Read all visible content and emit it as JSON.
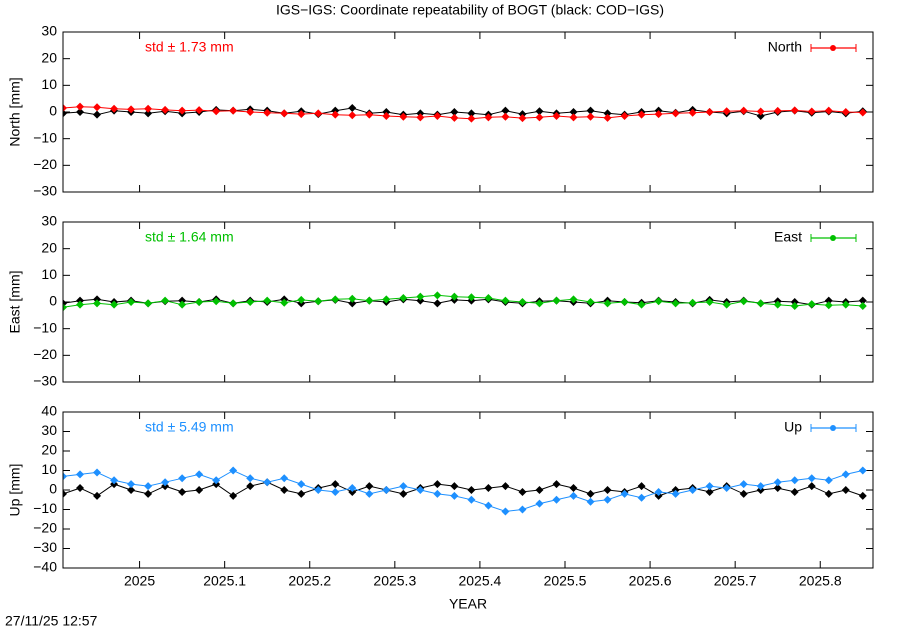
{
  "title": "IGS−IGS: Coordinate repeatability of BOGT (black: COD−IGS)",
  "timestamp": "27/11/25 12:57",
  "chart_data": [
    {
      "type": "line",
      "ylabel": "North [mm]",
      "annotation": "std ± 1.73 mm",
      "show_xtick_labels": false,
      "x": [
        2024.91,
        2024.93,
        2024.95,
        2024.97,
        2024.99,
        2025.01,
        2025.03,
        2025.05,
        2025.07,
        2025.09,
        2025.11,
        2025.13,
        2025.15,
        2025.17,
        2025.19,
        2025.21,
        2025.23,
        2025.25,
        2025.27,
        2025.29,
        2025.31,
        2025.33,
        2025.35,
        2025.37,
        2025.39,
        2025.41,
        2025.43,
        2025.45,
        2025.47,
        2025.49,
        2025.51,
        2025.53,
        2025.55,
        2025.57,
        2025.59,
        2025.61,
        2025.63,
        2025.65,
        2025.67,
        2025.69,
        2025.71,
        2025.73,
        2025.75,
        2025.77,
        2025.79,
        2025.81,
        2025.83,
        2025.85
      ],
      "xlim": [
        2024.91,
        2025.862
      ],
      "xticks": [
        2025,
        2025.1,
        2025.2,
        2025.3,
        2025.4,
        2025.5,
        2025.6,
        2025.7,
        2025.8
      ],
      "ylim": [
        -30,
        30
      ],
      "yticks": [
        {
          "value": -30,
          "label": "−30"
        },
        {
          "value": -20,
          "label": "−20"
        },
        {
          "value": -10,
          "label": "−10"
        },
        0,
        10,
        20,
        30
      ],
      "series": [
        {
          "color": "#000000",
          "values": [
            -0.5,
            0,
            -1,
            0.5,
            0,
            -0.5,
            0.3,
            -0.5,
            0,
            0.8,
            0.5,
            1,
            0.5,
            -0.5,
            0.3,
            -0.8,
            0.5,
            1.5,
            -0.5,
            0,
            -1,
            -0.5,
            -1,
            0,
            -0.5,
            -1,
            0.5,
            -0.8,
            0.3,
            -0.5,
            0,
            0.5,
            -0.5,
            -1,
            0,
            0.5,
            -0.3,
            0.8,
            0,
            -0.5,
            0.3,
            -1.5,
            0,
            0.5,
            -0.3,
            0.2,
            -0.5,
            0.3
          ]
        },
        {
          "name": "North",
          "color": "#ff0000",
          "values": [
            1.5,
            2,
            1.8,
            1.2,
            1,
            1.2,
            0.8,
            0.5,
            0.7,
            0.3,
            0.5,
            0,
            -0.3,
            -0.5,
            -0.8,
            -0.5,
            -1,
            -1.2,
            -1,
            -1.5,
            -1.8,
            -2,
            -1.5,
            -2.2,
            -2.5,
            -2,
            -1.8,
            -2.3,
            -2,
            -1.5,
            -2,
            -1.8,
            -2.2,
            -1.5,
            -1,
            -0.8,
            -0.5,
            -0.3,
            0,
            0.3,
            0.5,
            0.2,
            0.4,
            0.6,
            0.2,
            0.5,
            0,
            -0.2
          ]
        }
      ]
    },
    {
      "type": "line",
      "ylabel": "East [mm]",
      "annotation": "std ± 1.64 mm",
      "show_xtick_labels": false,
      "x": [
        2024.91,
        2024.93,
        2024.95,
        2024.97,
        2024.99,
        2025.01,
        2025.03,
        2025.05,
        2025.07,
        2025.09,
        2025.11,
        2025.13,
        2025.15,
        2025.17,
        2025.19,
        2025.21,
        2025.23,
        2025.25,
        2025.27,
        2025.29,
        2025.31,
        2025.33,
        2025.35,
        2025.37,
        2025.39,
        2025.41,
        2025.43,
        2025.45,
        2025.47,
        2025.49,
        2025.51,
        2025.53,
        2025.55,
        2025.57,
        2025.59,
        2025.61,
        2025.63,
        2025.65,
        2025.67,
        2025.69,
        2025.71,
        2025.73,
        2025.75,
        2025.77,
        2025.79,
        2025.81,
        2025.83,
        2025.85
      ],
      "xlim": [
        2024.91,
        2025.862
      ],
      "xticks": [
        2025,
        2025.1,
        2025.2,
        2025.3,
        2025.4,
        2025.5,
        2025.6,
        2025.7,
        2025.8
      ],
      "ylim": [
        -30,
        30
      ],
      "yticks": [
        {
          "value": -30,
          "label": "−30"
        },
        {
          "value": -20,
          "label": "−20"
        },
        {
          "value": -10,
          "label": "−10"
        },
        0,
        10,
        20,
        30
      ],
      "series": [
        {
          "color": "#000000",
          "values": [
            -0.5,
            0.5,
            1,
            0,
            0.5,
            -0.5,
            0.3,
            0.5,
            0,
            1,
            -0.5,
            0.5,
            0,
            1,
            -0.5,
            0.3,
            0.8,
            -0.5,
            0.5,
            0,
            1,
            0.5,
            -0.5,
            0.8,
            0.5,
            1,
            0,
            -0.5,
            0.3,
            0.5,
            0,
            -0.5,
            0.5,
            0,
            -0.3,
            0.5,
            0,
            -0.5,
            0.8,
            0,
            0.5,
            -0.5,
            0.3,
            0,
            -1,
            0.5,
            0,
            0.5
          ]
        },
        {
          "name": "East",
          "color": "#00c000",
          "values": [
            -2,
            -1,
            -0.5,
            -1,
            0,
            -0.5,
            0.5,
            -1,
            0,
            0.3,
            -0.5,
            0,
            0.5,
            -0.3,
            0.8,
            0.3,
            1,
            1.2,
            0.5,
            1,
            1.5,
            2,
            2.5,
            2,
            1.8,
            1.5,
            0.5,
            0,
            -0.5,
            0.5,
            1,
            0,
            -0.5,
            0,
            -1,
            0.3,
            -0.5,
            -0.3,
            0,
            -1,
            0.3,
            -0.5,
            -1,
            -1.5,
            -0.8,
            -1.2,
            -1,
            -1.5
          ]
        }
      ]
    },
    {
      "type": "line",
      "ylabel": "Up [mm]",
      "xlabel": "YEAR",
      "annotation": "std ± 5.49 mm",
      "show_xtick_labels": true,
      "x": [
        2024.91,
        2024.93,
        2024.95,
        2024.97,
        2024.99,
        2025.01,
        2025.03,
        2025.05,
        2025.07,
        2025.09,
        2025.11,
        2025.13,
        2025.15,
        2025.17,
        2025.19,
        2025.21,
        2025.23,
        2025.25,
        2025.27,
        2025.29,
        2025.31,
        2025.33,
        2025.35,
        2025.37,
        2025.39,
        2025.41,
        2025.43,
        2025.45,
        2025.47,
        2025.49,
        2025.51,
        2025.53,
        2025.55,
        2025.57,
        2025.59,
        2025.61,
        2025.63,
        2025.65,
        2025.67,
        2025.69,
        2025.71,
        2025.73,
        2025.75,
        2025.77,
        2025.79,
        2025.81,
        2025.83,
        2025.85
      ],
      "xlim": [
        2024.91,
        2025.862
      ],
      "xticks": [
        2025,
        2025.1,
        2025.2,
        2025.3,
        2025.4,
        2025.5,
        2025.6,
        2025.7,
        2025.8
      ],
      "ylim": [
        -40,
        40
      ],
      "yticks": [
        {
          "value": -40,
          "label": "−40"
        },
        {
          "value": -30,
          "label": "−30"
        },
        {
          "value": -20,
          "label": "−20"
        },
        {
          "value": -10,
          "label": "−10"
        },
        0,
        10,
        20,
        30,
        40
      ],
      "series": [
        {
          "color": "#000000",
          "values": [
            -2,
            1,
            -3,
            3,
            0,
            -2,
            2,
            -1,
            0,
            3,
            -3,
            2,
            4,
            0,
            -2,
            1,
            3,
            -1,
            2,
            0,
            -2,
            1,
            3,
            2,
            0,
            1,
            2,
            -1,
            0,
            3,
            1,
            -2,
            0,
            -1,
            2,
            -3,
            0,
            1,
            -1,
            2,
            -2,
            0,
            1,
            -1,
            2,
            -2,
            0,
            -3
          ]
        },
        {
          "name": "Up",
          "color": "#1e90ff",
          "values": [
            7,
            8,
            9,
            5,
            3,
            2,
            4,
            6,
            8,
            5,
            10,
            6,
            4,
            6,
            3,
            0,
            -1,
            1,
            -2,
            0,
            2,
            0,
            -2,
            -3,
            -5,
            -8,
            -11,
            -10,
            -7,
            -5,
            -3,
            -6,
            -5,
            -2,
            -4,
            -1,
            -2,
            0,
            2,
            1,
            3,
            2,
            4,
            5,
            6,
            5,
            8,
            10
          ]
        }
      ]
    }
  ]
}
